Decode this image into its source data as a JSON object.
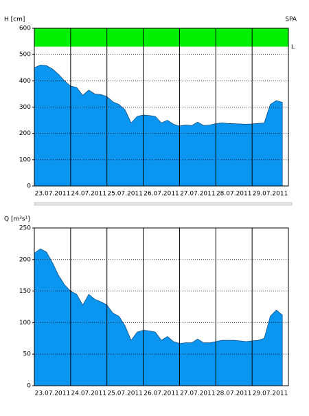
{
  "chart_data": [
    {
      "type": "area",
      "ylabel": "H [cm]",
      "annotation": "SPA",
      "categories": [
        "23.07.2011",
        "24.07.2011",
        "25.07.2011",
        "26.07.2011",
        "27.07.2011",
        "28.07.2011",
        "29.07.2011"
      ],
      "values": [
        [
          450,
          460,
          458,
          445,
          425,
          400
        ],
        [
          380,
          375,
          345,
          365,
          350,
          348
        ],
        [
          340,
          320,
          310,
          290,
          240,
          265
        ],
        [
          270,
          268,
          265,
          240,
          250,
          235
        ],
        [
          228,
          232,
          230,
          243,
          230,
          232
        ],
        [
          237,
          240,
          238,
          237,
          236,
          235
        ],
        [
          236,
          238,
          240,
          310,
          325,
          318
        ]
      ],
      "color": "#0a96f0",
      "ylim": [
        0,
        600
      ],
      "yticks": [
        0,
        100,
        200,
        300,
        400,
        500,
        600
      ],
      "grid": true,
      "bands": [
        {
          "from": 530,
          "to": 600,
          "color": "#00f000",
          "label": "I."
        }
      ]
    },
    {
      "type": "area",
      "ylabel": "Q [m³s¹]",
      "categories": [
        "23.07.2011",
        "24.07.2011",
        "25.07.2011",
        "26.07.2011",
        "27.07.2011",
        "28.07.2011",
        "29.07.2011"
      ],
      "values": [
        [
          210,
          217,
          212,
          195,
          175,
          160
        ],
        [
          150,
          145,
          128,
          145,
          137,
          133
        ],
        [
          128,
          115,
          110,
          95,
          72,
          85
        ],
        [
          88,
          87,
          85,
          72,
          78,
          70
        ],
        [
          67,
          68,
          68,
          74,
          68,
          68
        ],
        [
          70,
          72,
          72,
          72,
          71,
          70
        ],
        [
          71,
          72,
          75,
          110,
          120,
          112
        ]
      ],
      "color": "#0a96f0",
      "ylim": [
        0,
        250
      ],
      "yticks": [
        0,
        50,
        100,
        150,
        200,
        250
      ],
      "grid": true
    }
  ]
}
